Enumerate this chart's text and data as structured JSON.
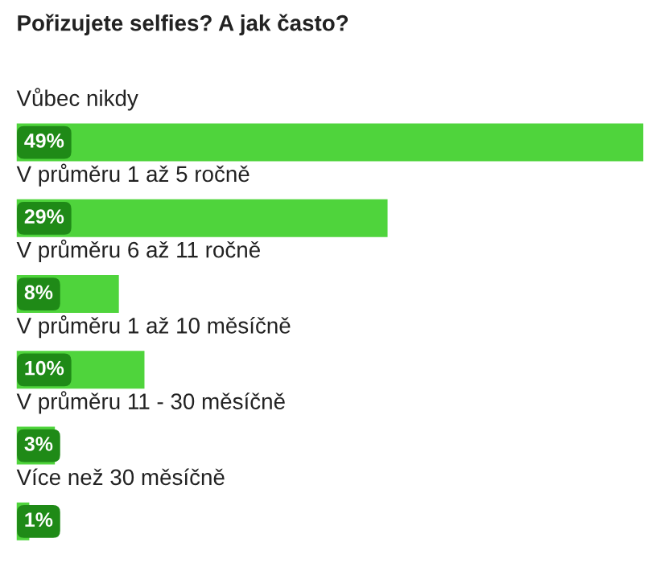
{
  "chart_data": {
    "type": "bar",
    "orientation": "horizontal",
    "title": "Pořizujete selfies? A jak často?",
    "categories": [
      "Vůbec nikdy",
      "V průměru 1 až 5 ročně",
      "V průměru 6 až 11 ročně",
      "V průměru 1 až 10 měsíčně",
      "V průměru 11 - 30 měsíčně",
      "Více než 30 měsíčně"
    ],
    "values": [
      49,
      29,
      8,
      10,
      3,
      1
    ],
    "value_labels": [
      "49%",
      "29%",
      "8%",
      "10%",
      "3%",
      "1%"
    ],
    "color": "#4fd43c"
  }
}
